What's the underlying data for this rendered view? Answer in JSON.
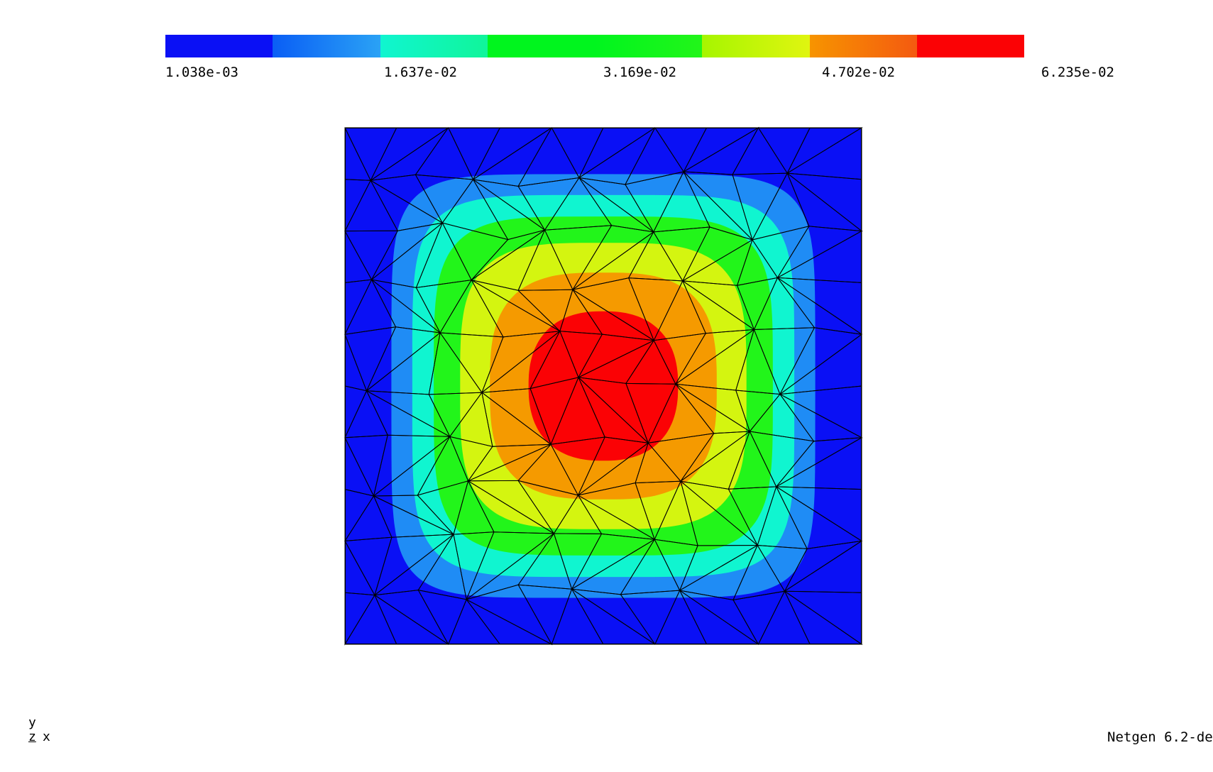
{
  "colorbar": {
    "segments": [
      "#0a10f5",
      "#0a5ef5 #2aa2f5",
      "#10f5d0 #10f59a",
      "#00f51e",
      "#00f51e #22f51a",
      "#a6f500 #e0f510",
      "#f79400 #f45a10",
      "#fb0205"
    ],
    "tick_labels": [
      "1.038e-03",
      "1.637e-02",
      "3.169e-02",
      "4.702e-02",
      "6.235e-02"
    ]
  },
  "contour": {
    "bands": [
      {
        "level": 0.0038,
        "color": "#0a10f5"
      },
      {
        "level": 0.017,
        "color": "#1f8cf5"
      },
      {
        "level": 0.0245,
        "color": "#10f5d0"
      },
      {
        "level": 0.0318,
        "color": "#22f51a"
      },
      {
        "level": 0.04,
        "color": "#d4f510"
      },
      {
        "level": 0.048,
        "color": "#f59a00"
      },
      {
        "level": 0.056,
        "color": "#fb0205"
      }
    ],
    "mesh_color": "#000000"
  },
  "axes": {
    "y": "y",
    "z": "z",
    "x": "x"
  },
  "version_text": "Netgen 6.2-de"
}
